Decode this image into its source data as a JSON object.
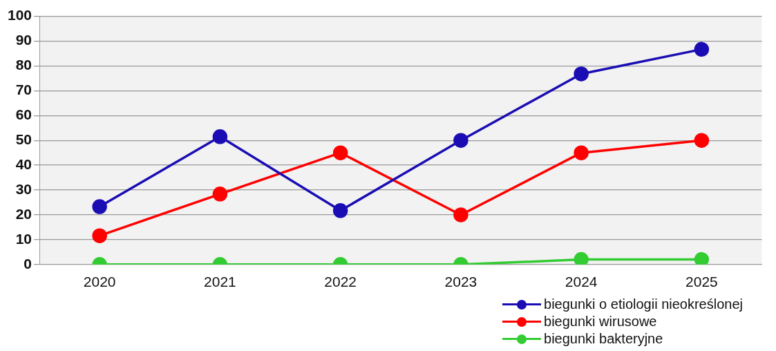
{
  "chart_data": {
    "type": "line",
    "categories": [
      "2020",
      "2021",
      "2022",
      "2023",
      "2024",
      "2025"
    ],
    "series": [
      {
        "name": "biegunki o etiologii nieokreślonej",
        "color": "#1a0db3",
        "values": [
          23.3,
          51.5,
          21.7,
          50,
          76.8,
          86.7
        ]
      },
      {
        "name": "biegunki wirusowe",
        "color": "#ff0000",
        "values": [
          11.6,
          28.4,
          45,
          20,
          45,
          50
        ]
      },
      {
        "name": "biegunki bakteryjne",
        "color": "#33cc33",
        "values": [
          0,
          0,
          0,
          0,
          2,
          2
        ]
      }
    ],
    "ylim": [
      0,
      100
    ],
    "yticks": [
      0,
      10,
      20,
      30,
      40,
      50,
      60,
      70,
      80,
      90,
      100
    ],
    "grid": "y",
    "legend": "bottom right",
    "marker": "circle",
    "line_style": "solid"
  }
}
